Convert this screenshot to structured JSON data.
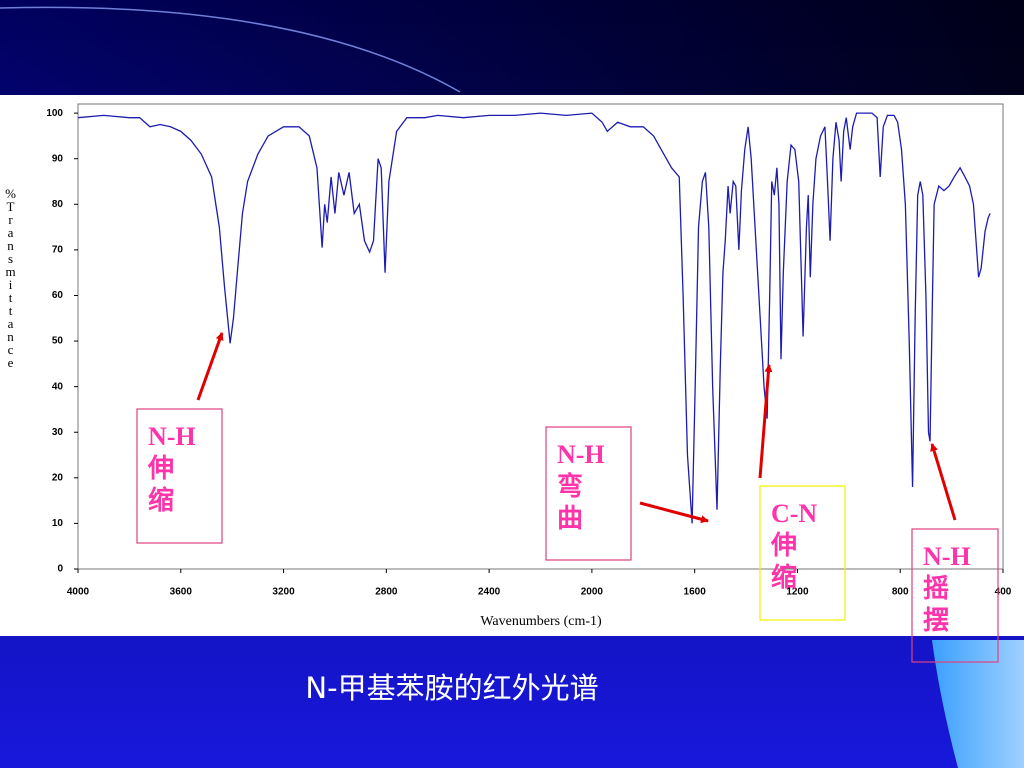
{
  "chart_data": {
    "type": "line",
    "title": "N-甲基苯胺的红外光谱",
    "x_label": "Wavenumbers (cm-1)",
    "y_label": "%Transmittance",
    "color": "#1c1cb0",
    "grid": false,
    "xlim": [
      4000,
      400
    ],
    "xticks": [
      4000,
      3600,
      3200,
      2800,
      2400,
      2000,
      1600,
      1200,
      800,
      400
    ],
    "ylim": [
      0,
      102
    ],
    "yticks": [
      0,
      10,
      20,
      30,
      40,
      50,
      60,
      70,
      80,
      90,
      100
    ],
    "x": [
      4000,
      3900,
      3800,
      3760,
      3720,
      3680,
      3640,
      3600,
      3560,
      3520,
      3480,
      3450,
      3430,
      3408,
      3395,
      3380,
      3360,
      3340,
      3300,
      3260,
      3200,
      3140,
      3100,
      3070,
      3050,
      3040,
      3030,
      3015,
      3000,
      2985,
      2965,
      2945,
      2925,
      2905,
      2885,
      2865,
      2850,
      2832,
      2820,
      2805,
      2790,
      2760,
      2720,
      2650,
      2600,
      2500,
      2400,
      2300,
      2200,
      2100,
      2000,
      1960,
      1940,
      1900,
      1850,
      1800,
      1760,
      1720,
      1690,
      1660,
      1645,
      1628,
      1610,
      1598,
      1585,
      1570,
      1558,
      1545,
      1530,
      1513,
      1500,
      1490,
      1481,
      1470,
      1462,
      1450,
      1440,
      1428,
      1418,
      1405,
      1392,
      1380,
      1365,
      1345,
      1330,
      1318,
      1308,
      1300,
      1290,
      1280,
      1272,
      1264,
      1255,
      1240,
      1225,
      1210,
      1195,
      1178,
      1165,
      1158,
      1150,
      1140,
      1128,
      1110,
      1093,
      1083,
      1073,
      1062,
      1050,
      1038,
      1030,
      1020,
      1010,
      995,
      985,
      970,
      940,
      910,
      890,
      878,
      866,
      850,
      824,
      810,
      795,
      780,
      765,
      752,
      742,
      732,
      722,
      712,
      700,
      690,
      684,
      676,
      668,
      650,
      630,
      610,
      590,
      567,
      548,
      530,
      515,
      505,
      495,
      485,
      470,
      458,
      450
    ],
    "values": [
      99,
      99.5,
      99,
      99,
      97,
      97.5,
      97,
      96,
      94,
      91,
      86,
      75,
      62,
      49.5,
      55,
      65,
      78,
      85,
      91,
      95,
      97,
      97,
      95,
      88,
      70.5,
      80,
      76,
      86,
      78,
      87,
      82,
      87,
      78,
      80,
      72,
      69.5,
      72,
      90,
      88,
      65,
      85,
      96,
      99,
      99,
      99.5,
      99,
      99.5,
      99.5,
      100,
      99.5,
      100,
      98,
      96,
      98,
      97,
      97,
      95,
      91,
      88,
      86,
      60,
      25,
      10,
      40,
      75,
      85,
      87,
      75,
      40,
      13,
      45,
      65,
      72,
      84,
      78,
      85,
      84,
      70,
      83,
      92,
      97,
      90,
      75,
      55,
      40,
      33,
      60,
      85,
      82,
      88,
      80,
      46,
      65,
      85,
      93,
      92,
      85,
      51,
      75,
      82,
      64,
      80,
      90,
      95,
      97,
      85,
      72,
      90,
      98,
      94,
      85,
      96,
      99,
      92,
      97,
      100,
      100,
      100,
      99,
      86,
      97,
      99.5,
      99.5,
      98,
      92,
      80,
      50,
      18,
      55,
      82,
      85,
      82,
      60,
      30,
      28,
      55,
      80,
      84,
      83,
      84,
      86,
      88,
      86,
      84,
      80,
      72,
      64,
      66,
      74,
      77,
      78
    ],
    "annotations": [
      {
        "lines": [
          "N-H",
          "伸",
          "缩"
        ],
        "border": "#e04080"
      },
      {
        "lines": [
          "N-H",
          "弯",
          "曲"
        ],
        "border": "#e04080"
      },
      {
        "lines": [
          "C-N",
          "伸",
          "缩"
        ],
        "border": "#f0f000"
      },
      {
        "lines": [
          "N-H",
          "摇",
          "摆"
        ],
        "border": "#e04080"
      }
    ]
  }
}
